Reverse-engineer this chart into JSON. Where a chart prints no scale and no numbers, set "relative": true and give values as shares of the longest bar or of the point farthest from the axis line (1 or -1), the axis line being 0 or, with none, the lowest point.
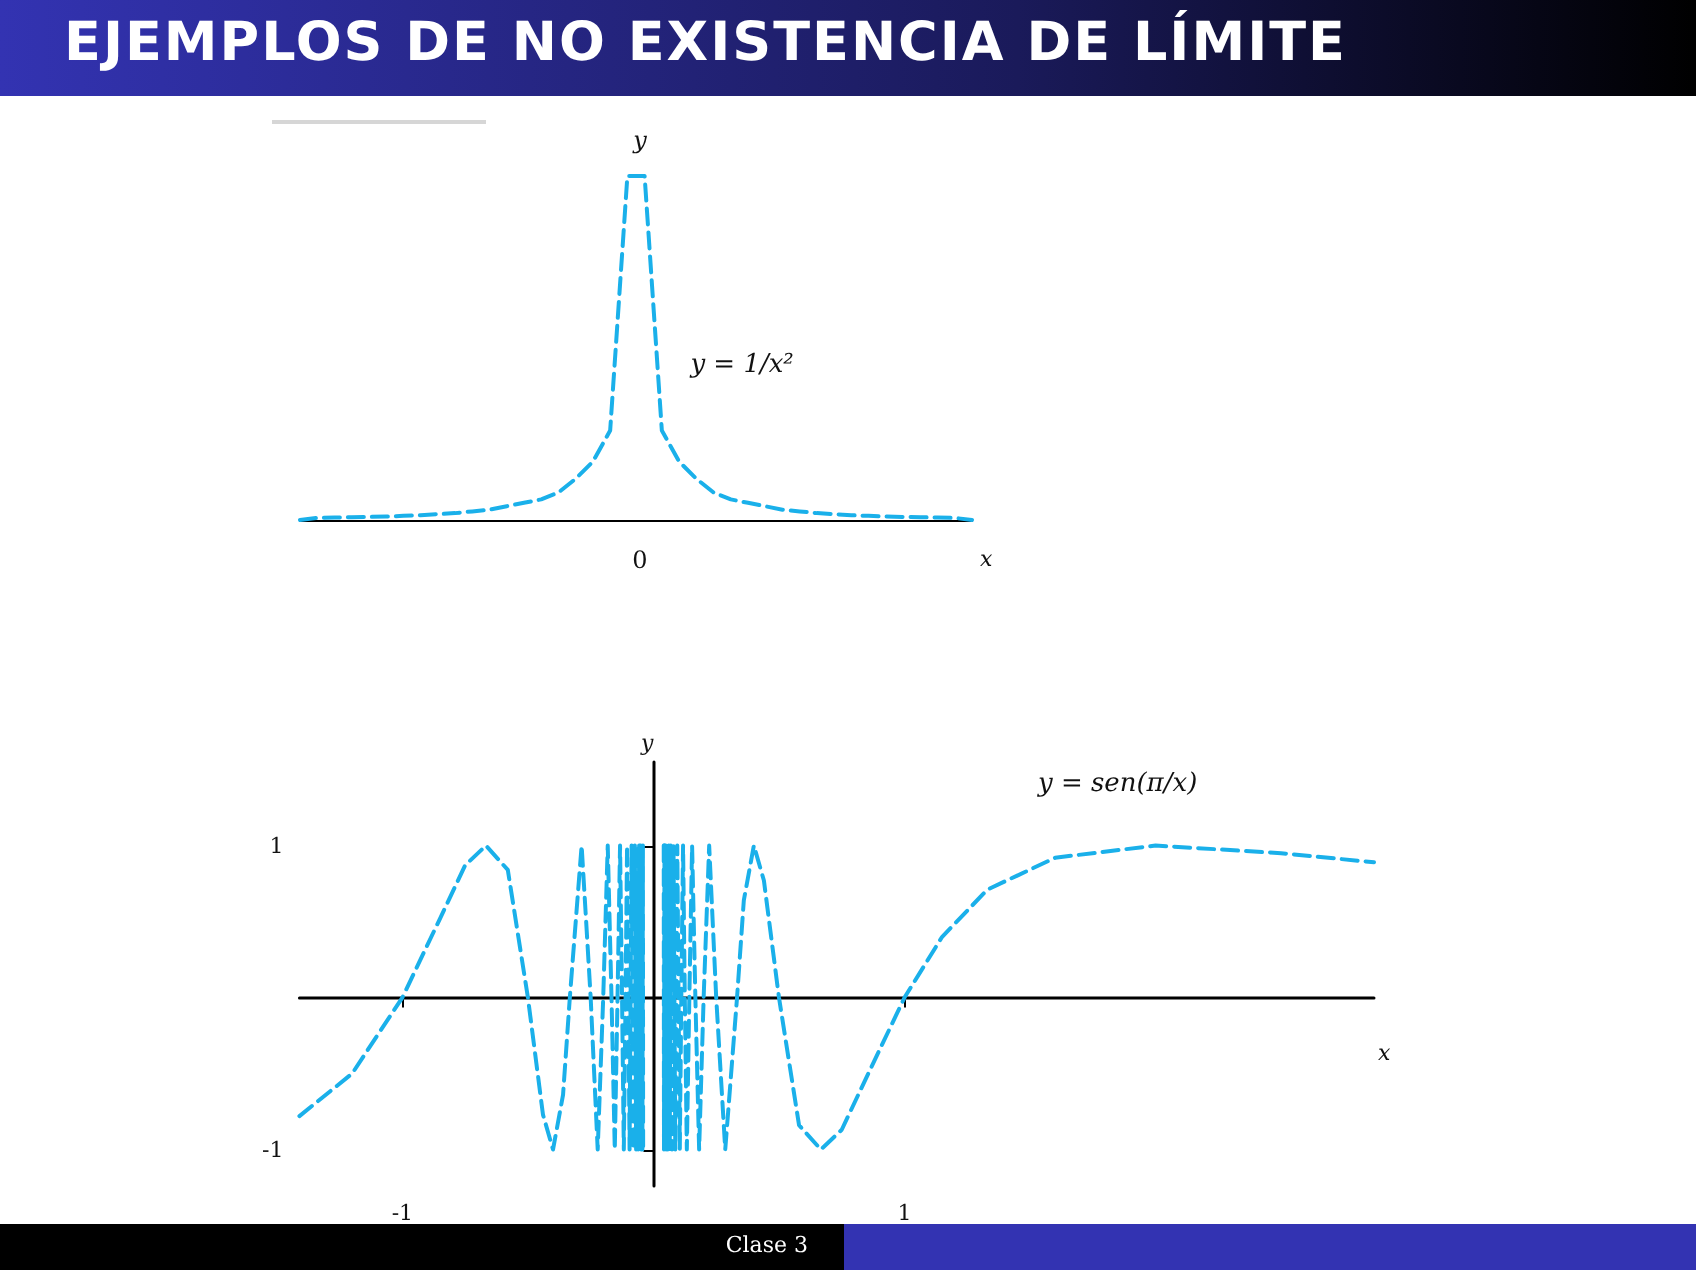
{
  "chart_data": [
    {
      "type": "line",
      "title": "EJEMPLOS DE NO EXISTENCIA DE LÍMITE",
      "xlabel": "x",
      "ylabel": "y",
      "relative": true,
      "color": "#1ab0ea",
      "line_style": "dashed",
      "categories": [
        null,
        null,
        null,
        null,
        null,
        null,
        null,
        null,
        null,
        null,
        null,
        null,
        null,
        null,
        null,
        null,
        null,
        null,
        null,
        null,
        null,
        null,
        null,
        null,
        null,
        null,
        null,
        null,
        null,
        null,
        null,
        null,
        null,
        null,
        null,
        null,
        null,
        null,
        null,
        null
      ],
      "values": [
        0,
        0.006,
        0.007,
        0.008,
        0.009,
        0.01,
        0.012,
        0.014,
        0.017,
        0.02,
        0.025,
        0.03,
        0.04,
        0.05,
        0.06,
        0.08,
        0.12,
        0.17,
        0.26,
        1,
        1,
        0.26,
        0.17,
        0.12,
        0.08,
        0.06,
        0.05,
        0.04,
        0.03,
        0.025,
        0.02,
        0.017,
        0.014,
        0.012,
        0.01,
        0.009,
        0.008,
        0.007,
        0.006,
        0
      ],
      "annotations": [
        "y = 1/x²",
        "0"
      ]
    },
    {
      "type": "line",
      "xlabel": "x",
      "ylabel": "y",
      "color": "#1ab0ea",
      "line_style": "dashed",
      "xlim": [
        -1.41,
        2.87
      ],
      "ylim": [
        -1.24,
        1.55
      ],
      "xticks": [
        -1,
        1
      ],
      "yticks": [
        -1,
        1
      ],
      "x": [
        -1.41,
        -1.2,
        -1,
        -0.85,
        -0.75,
        -0.667,
        -0.58,
        -0.5,
        -0.44,
        -0.4,
        -0.36,
        -0.333,
        -0.286,
        -0.25,
        -0.222,
        -0.2,
        -0.182,
        -0.167,
        -0.154,
        -0.143,
        -0.133,
        -0.125,
        -0.118,
        -0.111,
        -0.105,
        -0.1,
        -0.095,
        -0.087,
        -0.08,
        -0.074,
        -0.069,
        -0.065,
        -0.061,
        -0.057,
        -0.054,
        -0.051,
        -0.049,
        -0.047,
        -0.044,
        -0.042,
        -0.041,
        0,
        0.041,
        0.042,
        0.044,
        0.047,
        0.049,
        0.051,
        0.054,
        0.057,
        0.061,
        0.065,
        0.069,
        0.074,
        0.08,
        0.087,
        0.095,
        0.1,
        0.105,
        0.111,
        0.118,
        0.125,
        0.133,
        0.143,
        0.154,
        0.167,
        0.182,
        0.2,
        0.222,
        0.25,
        0.286,
        0.333,
        0.36,
        0.4,
        0.44,
        0.5,
        0.58,
        0.667,
        0.75,
        0.85,
        1,
        1.15,
        1.33,
        1.6,
        2,
        2.5,
        2.87
      ],
      "values": [
        -0.78,
        -0.5,
        0,
        0.52,
        0.87,
        1,
        0.84,
        0,
        -0.77,
        -1,
        -0.64,
        0,
        1,
        0,
        -1,
        0,
        1,
        0,
        -1,
        0,
        1,
        0,
        -1,
        0,
        1,
        0,
        -1,
        1,
        -1,
        1,
        -1,
        1,
        -1,
        1,
        -1,
        1,
        -1,
        1,
        -1,
        1,
        -1,
        null,
        1,
        -1,
        1,
        -1,
        1,
        -1,
        1,
        -1,
        1,
        -1,
        1,
        -1,
        1,
        -1,
        1,
        0,
        -1,
        0,
        1,
        0,
        -1,
        0,
        1,
        0,
        -1,
        0,
        1,
        0,
        -1,
        0,
        0.64,
        1,
        0.77,
        0,
        -0.84,
        -1,
        -0.87,
        -0.52,
        0,
        0.4,
        0.71,
        0.92,
        1,
        0.95,
        0.89
      ],
      "annotations": [
        "y = sen(π/x)",
        "Clase 3"
      ]
    }
  ]
}
